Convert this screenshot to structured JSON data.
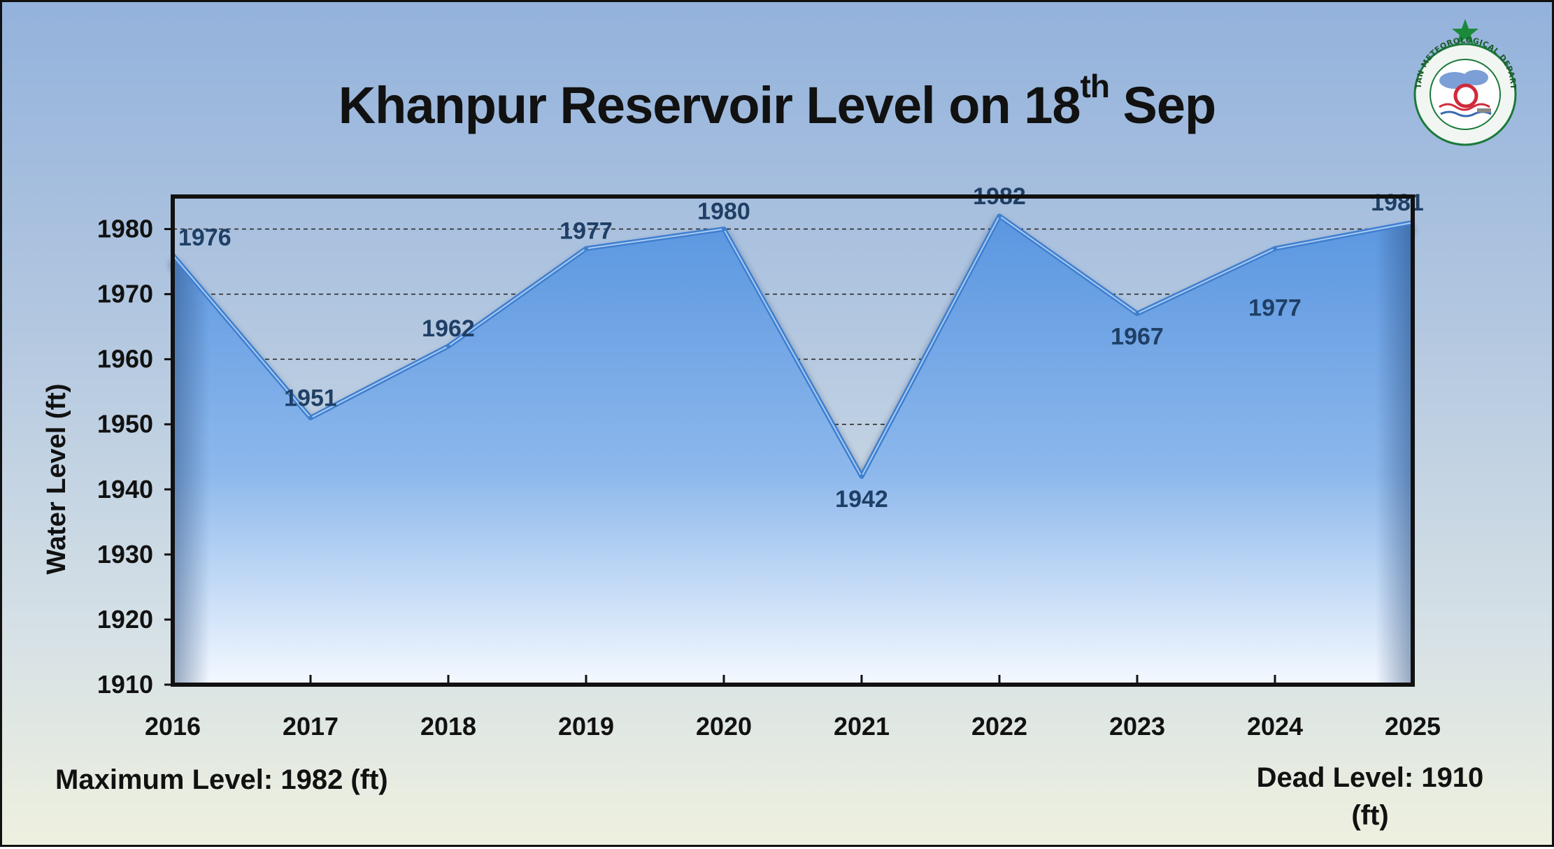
{
  "title": {
    "main": "Khanpur Reservoir Level on 18",
    "superscript": "th",
    "suffix": " Sep"
  },
  "notes": {
    "max_level": "Maximum Level: 1982 (ft)",
    "dead_level": "Dead Level: 1910 (ft)"
  },
  "logo": {
    "icon": "pmd-seal-icon",
    "text": "PAKISTAN METEOROLOGICAL DEPARTMENT"
  },
  "colors": {
    "area_top": "#5a96e0",
    "area_bottom": "#f4f9ff",
    "line": "#3f7fcf",
    "data_label": "#1f3f66",
    "grid": "#222222",
    "axis": "#111111"
  },
  "chart_data": {
    "type": "area",
    "x": [
      "2016",
      "2017",
      "2018",
      "2019",
      "2020",
      "2021",
      "2022",
      "2023",
      "2024",
      "2025"
    ],
    "series": [
      {
        "values": [
          1976,
          1951,
          1962,
          1977,
          1980,
          1942,
          1982,
          1967,
          1977,
          1981
        ]
      }
    ],
    "data_labels": [
      "1976",
      "1951",
      "1962",
      "1977",
      "1980",
      "1942",
      "1982",
      "1967",
      "1977",
      "1981"
    ],
    "ylabel": "Water Level (ft)",
    "xlabel": "",
    "ylim": [
      1910,
      1985
    ],
    "yticks": [
      1910,
      1920,
      1930,
      1940,
      1950,
      1960,
      1970,
      1980
    ],
    "grid": "horizontal dashed",
    "legend": "none"
  }
}
